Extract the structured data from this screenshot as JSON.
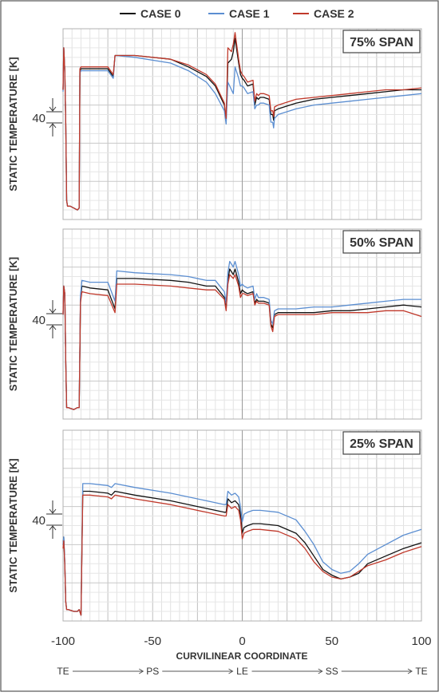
{
  "legend": [
    {
      "name": "CASE 0",
      "color": "#111111"
    },
    {
      "name": "CASE 1",
      "color": "#5b8ed1"
    },
    {
      "name": "CASE 2",
      "color": "#c0392b"
    }
  ],
  "xlabel": "CURVILINEAR COORDINATE",
  "x_ticks": [
    "-100",
    "-50",
    "0",
    "50",
    "100"
  ],
  "flow_labels": [
    "TE",
    "PS",
    "LE",
    "SS",
    "TE"
  ],
  "chart_data": [
    {
      "type": "line",
      "title": "75% SPAN",
      "ylabel": "STATIC TEMPERATURE [K]",
      "ytick_label": "40",
      "ytick_note": "40 K interval marker",
      "xlim": [
        -100,
        100
      ],
      "ylim": [
        0,
        1
      ],
      "grid": true,
      "legend_position": "top",
      "series": [
        {
          "name": "CASE 0",
          "x": [
            -100,
            -99.6,
            -99,
            -98.5,
            -98,
            -97.5,
            -96,
            -94,
            -92,
            -91,
            -90.6,
            -90,
            -85,
            -75,
            -72,
            -71,
            -60,
            -40,
            -30,
            -20,
            -15,
            -10,
            -9,
            -8,
            -6,
            -5,
            -4,
            -2,
            -1,
            0,
            1,
            3,
            6,
            7,
            8,
            9,
            10,
            12,
            15,
            16,
            17,
            17.5,
            18,
            20,
            30,
            40,
            50,
            60,
            70,
            80,
            90,
            100
          ],
          "y": [
            0.68,
            0.9,
            0.78,
            0.5,
            0.1,
            0.07,
            0.07,
            0.06,
            0.05,
            0.06,
            0.78,
            0.79,
            0.79,
            0.79,
            0.75,
            0.86,
            0.86,
            0.84,
            0.8,
            0.75,
            0.7,
            0.6,
            0.52,
            0.82,
            0.84,
            0.88,
            0.95,
            0.82,
            0.76,
            0.74,
            0.73,
            0.7,
            0.71,
            0.6,
            0.64,
            0.63,
            0.64,
            0.64,
            0.63,
            0.55,
            0.55,
            0.52,
            0.57,
            0.58,
            0.61,
            0.63,
            0.64,
            0.65,
            0.66,
            0.67,
            0.68,
            0.68
          ]
        },
        {
          "name": "CASE 1",
          "x": [
            -100,
            -99.6,
            -99,
            -98.5,
            -98,
            -97.5,
            -96,
            -94,
            -92,
            -91,
            -90.6,
            -90,
            -85,
            -75,
            -72,
            -71,
            -60,
            -40,
            -30,
            -20,
            -15,
            -10,
            -9,
            -8,
            -6,
            -5,
            -4,
            -2,
            -1,
            0,
            1,
            3,
            6,
            7,
            8,
            9,
            10,
            12,
            15,
            16,
            17,
            17.5,
            18,
            20,
            30,
            40,
            50,
            60,
            70,
            80,
            90,
            100
          ],
          "y": [
            0.67,
            0.9,
            0.77,
            0.5,
            0.1,
            0.07,
            0.07,
            0.06,
            0.05,
            0.06,
            0.77,
            0.78,
            0.78,
            0.78,
            0.74,
            0.86,
            0.85,
            0.82,
            0.78,
            0.72,
            0.66,
            0.57,
            0.5,
            0.72,
            0.68,
            0.66,
            0.8,
            0.74,
            0.7,
            0.7,
            0.69,
            0.66,
            0.67,
            0.58,
            0.6,
            0.6,
            0.61,
            0.61,
            0.6,
            0.51,
            0.51,
            0.48,
            0.53,
            0.55,
            0.58,
            0.6,
            0.61,
            0.62,
            0.63,
            0.64,
            0.65,
            0.66
          ]
        },
        {
          "name": "CASE 2",
          "x": [
            -100,
            -99.6,
            -99,
            -98.5,
            -98,
            -97.5,
            -96,
            -94,
            -92,
            -91,
            -90.6,
            -90,
            -85,
            -75,
            -72,
            -71,
            -60,
            -40,
            -30,
            -20,
            -15,
            -10,
            -9,
            -8,
            -6,
            -5,
            -4,
            -2,
            -1,
            0,
            1,
            3,
            6,
            7,
            8,
            9,
            10,
            12,
            15,
            16,
            17,
            17.5,
            18,
            20,
            30,
            40,
            50,
            60,
            70,
            80,
            90,
            100
          ],
          "y": [
            0.68,
            0.9,
            0.78,
            0.5,
            0.1,
            0.07,
            0.07,
            0.06,
            0.05,
            0.06,
            0.79,
            0.8,
            0.8,
            0.8,
            0.76,
            0.86,
            0.86,
            0.84,
            0.81,
            0.76,
            0.71,
            0.61,
            0.53,
            0.9,
            0.88,
            0.92,
            0.98,
            0.84,
            0.78,
            0.76,
            0.75,
            0.72,
            0.73,
            0.62,
            0.66,
            0.65,
            0.66,
            0.66,
            0.65,
            0.57,
            0.57,
            0.54,
            0.59,
            0.6,
            0.63,
            0.64,
            0.65,
            0.66,
            0.67,
            0.68,
            0.68,
            0.69
          ]
        }
      ]
    },
    {
      "type": "line",
      "title": "50% SPAN",
      "ylabel": "STATIC TEMPERATURE [K]",
      "ytick_label": "40",
      "ytick_note": "40 K interval marker",
      "xlim": [
        -100,
        100
      ],
      "ylim": [
        0,
        1
      ],
      "grid": true,
      "series": [
        {
          "name": "CASE 0",
          "x": [
            -100,
            -99.6,
            -99,
            -98.5,
            -98,
            -97,
            -94,
            -92,
            -91,
            -90.3,
            -89.5,
            -85,
            -75,
            -71,
            -70,
            -60,
            -40,
            -30,
            -20,
            -15,
            -10,
            -9,
            -8,
            -7,
            -5,
            -4,
            -2,
            -1,
            0,
            1,
            3,
            6,
            7,
            8,
            9,
            10,
            12,
            15,
            16,
            17,
            18,
            20,
            30,
            40,
            50,
            60,
            70,
            80,
            90,
            100
          ],
          "y": [
            0.55,
            0.7,
            0.66,
            0.3,
            0.06,
            0.06,
            0.05,
            0.06,
            0.06,
            0.63,
            0.7,
            0.69,
            0.68,
            0.58,
            0.74,
            0.74,
            0.73,
            0.72,
            0.7,
            0.7,
            0.64,
            0.58,
            0.73,
            0.79,
            0.76,
            0.79,
            0.72,
            0.66,
            0.68,
            0.67,
            0.66,
            0.67,
            0.61,
            0.63,
            0.62,
            0.62,
            0.62,
            0.61,
            0.5,
            0.48,
            0.55,
            0.56,
            0.56,
            0.56,
            0.57,
            0.57,
            0.58,
            0.59,
            0.6,
            0.59
          ]
        },
        {
          "name": "CASE 1",
          "x": [
            -100,
            -99.6,
            -99,
            -98.5,
            -98,
            -97,
            -94,
            -92,
            -91,
            -90.3,
            -89.5,
            -85,
            -75,
            -71,
            -70,
            -60,
            -40,
            -30,
            -20,
            -15,
            -10,
            -9,
            -8,
            -7,
            -5,
            -4,
            -2,
            -1,
            0,
            1,
            3,
            6,
            7,
            8,
            9,
            10,
            12,
            15,
            16,
            17,
            18,
            20,
            30,
            40,
            50,
            60,
            70,
            80,
            90,
            100
          ],
          "y": [
            0.55,
            0.7,
            0.66,
            0.3,
            0.06,
            0.06,
            0.05,
            0.06,
            0.06,
            0.65,
            0.73,
            0.72,
            0.72,
            0.62,
            0.78,
            0.77,
            0.76,
            0.75,
            0.73,
            0.73,
            0.67,
            0.61,
            0.77,
            0.83,
            0.8,
            0.83,
            0.76,
            0.7,
            0.71,
            0.7,
            0.69,
            0.7,
            0.63,
            0.66,
            0.64,
            0.64,
            0.64,
            0.63,
            0.52,
            0.5,
            0.57,
            0.58,
            0.58,
            0.59,
            0.59,
            0.6,
            0.61,
            0.62,
            0.63,
            0.63
          ]
        },
        {
          "name": "CASE 2",
          "x": [
            -100,
            -99.6,
            -99,
            -98.5,
            -98,
            -97,
            -94,
            -92,
            -91,
            -90.3,
            -89.5,
            -85,
            -75,
            -71,
            -70,
            -60,
            -40,
            -30,
            -20,
            -15,
            -10,
            -9,
            -8,
            -7,
            -5,
            -4,
            -2,
            -1,
            0,
            1,
            3,
            6,
            7,
            8,
            9,
            10,
            12,
            15,
            16,
            17,
            18,
            20,
            30,
            40,
            50,
            60,
            70,
            80,
            90,
            100
          ],
          "y": [
            0.55,
            0.7,
            0.66,
            0.3,
            0.06,
            0.06,
            0.05,
            0.06,
            0.06,
            0.61,
            0.67,
            0.66,
            0.65,
            0.56,
            0.71,
            0.71,
            0.7,
            0.69,
            0.68,
            0.68,
            0.63,
            0.57,
            0.71,
            0.76,
            0.74,
            0.76,
            0.7,
            0.64,
            0.66,
            0.66,
            0.65,
            0.66,
            0.6,
            0.62,
            0.61,
            0.61,
            0.61,
            0.6,
            0.49,
            0.46,
            0.54,
            0.55,
            0.55,
            0.55,
            0.56,
            0.56,
            0.56,
            0.57,
            0.57,
            0.54
          ]
        }
      ]
    },
    {
      "type": "line",
      "title": "25% SPAN",
      "ylabel": "STATIC TEMPERATURE [K]",
      "ytick_label": "40",
      "ytick_note": "40 K interval marker",
      "xlim": [
        -100,
        100
      ],
      "ylim": [
        0,
        1
      ],
      "grid": true,
      "series": [
        {
          "name": "CASE 0",
          "x": [
            -100,
            -99.6,
            -99,
            -98.5,
            -98,
            -97,
            -94,
            -92,
            -91,
            -90,
            -89,
            -85,
            -75,
            -73,
            -72,
            -71,
            -60,
            -40,
            -20,
            -10,
            -9,
            -8,
            -6,
            -4,
            -2,
            -1,
            0,
            1,
            3,
            6,
            10,
            20,
            30,
            35,
            40,
            45,
            50,
            55,
            60,
            65,
            70,
            80,
            90,
            100
          ],
          "y": [
            0.4,
            0.44,
            0.3,
            0.1,
            0.06,
            0.06,
            0.05,
            0.05,
            0.06,
            0.03,
            0.68,
            0.68,
            0.67,
            0.66,
            0.67,
            0.68,
            0.66,
            0.63,
            0.59,
            0.57,
            0.57,
            0.64,
            0.62,
            0.63,
            0.61,
            0.56,
            0.46,
            0.49,
            0.5,
            0.51,
            0.51,
            0.5,
            0.46,
            0.41,
            0.34,
            0.27,
            0.24,
            0.22,
            0.23,
            0.25,
            0.3,
            0.34,
            0.38,
            0.41
          ]
        },
        {
          "name": "CASE 1",
          "x": [
            -100,
            -99.6,
            -99,
            -98.5,
            -98,
            -97,
            -94,
            -92,
            -91,
            -90,
            -89,
            -85,
            -75,
            -73,
            -72,
            -71,
            -60,
            -40,
            -20,
            -10,
            -9,
            -8,
            -6,
            -4,
            -2,
            -1,
            0,
            1,
            3,
            6,
            10,
            20,
            30,
            35,
            40,
            45,
            50,
            55,
            60,
            65,
            70,
            80,
            90,
            100
          ],
          "y": [
            0.4,
            0.44,
            0.3,
            0.1,
            0.06,
            0.06,
            0.05,
            0.05,
            0.06,
            0.03,
            0.72,
            0.72,
            0.71,
            0.7,
            0.71,
            0.72,
            0.7,
            0.67,
            0.63,
            0.61,
            0.61,
            0.68,
            0.66,
            0.67,
            0.65,
            0.6,
            0.52,
            0.56,
            0.57,
            0.58,
            0.58,
            0.57,
            0.53,
            0.47,
            0.4,
            0.31,
            0.27,
            0.25,
            0.26,
            0.3,
            0.35,
            0.4,
            0.45,
            0.48
          ]
        },
        {
          "name": "CASE 2",
          "x": [
            -100,
            -99.6,
            -99,
            -98.5,
            -98,
            -97,
            -94,
            -92,
            -91,
            -90,
            -89,
            -85,
            -75,
            -73,
            -72,
            -71,
            -60,
            -40,
            -20,
            -10,
            -9,
            -8,
            -6,
            -4,
            -2,
            -1,
            0,
            1,
            3,
            6,
            10,
            20,
            30,
            35,
            40,
            45,
            50,
            55,
            60,
            65,
            70,
            80,
            90,
            100
          ],
          "y": [
            0.38,
            0.42,
            0.29,
            0.1,
            0.06,
            0.06,
            0.05,
            0.05,
            0.06,
            0.03,
            0.66,
            0.66,
            0.65,
            0.64,
            0.65,
            0.66,
            0.64,
            0.61,
            0.57,
            0.55,
            0.55,
            0.61,
            0.59,
            0.6,
            0.58,
            0.53,
            0.43,
            0.46,
            0.47,
            0.48,
            0.48,
            0.47,
            0.43,
            0.38,
            0.31,
            0.26,
            0.23,
            0.22,
            0.23,
            0.26,
            0.29,
            0.32,
            0.36,
            0.39
          ]
        }
      ]
    }
  ]
}
